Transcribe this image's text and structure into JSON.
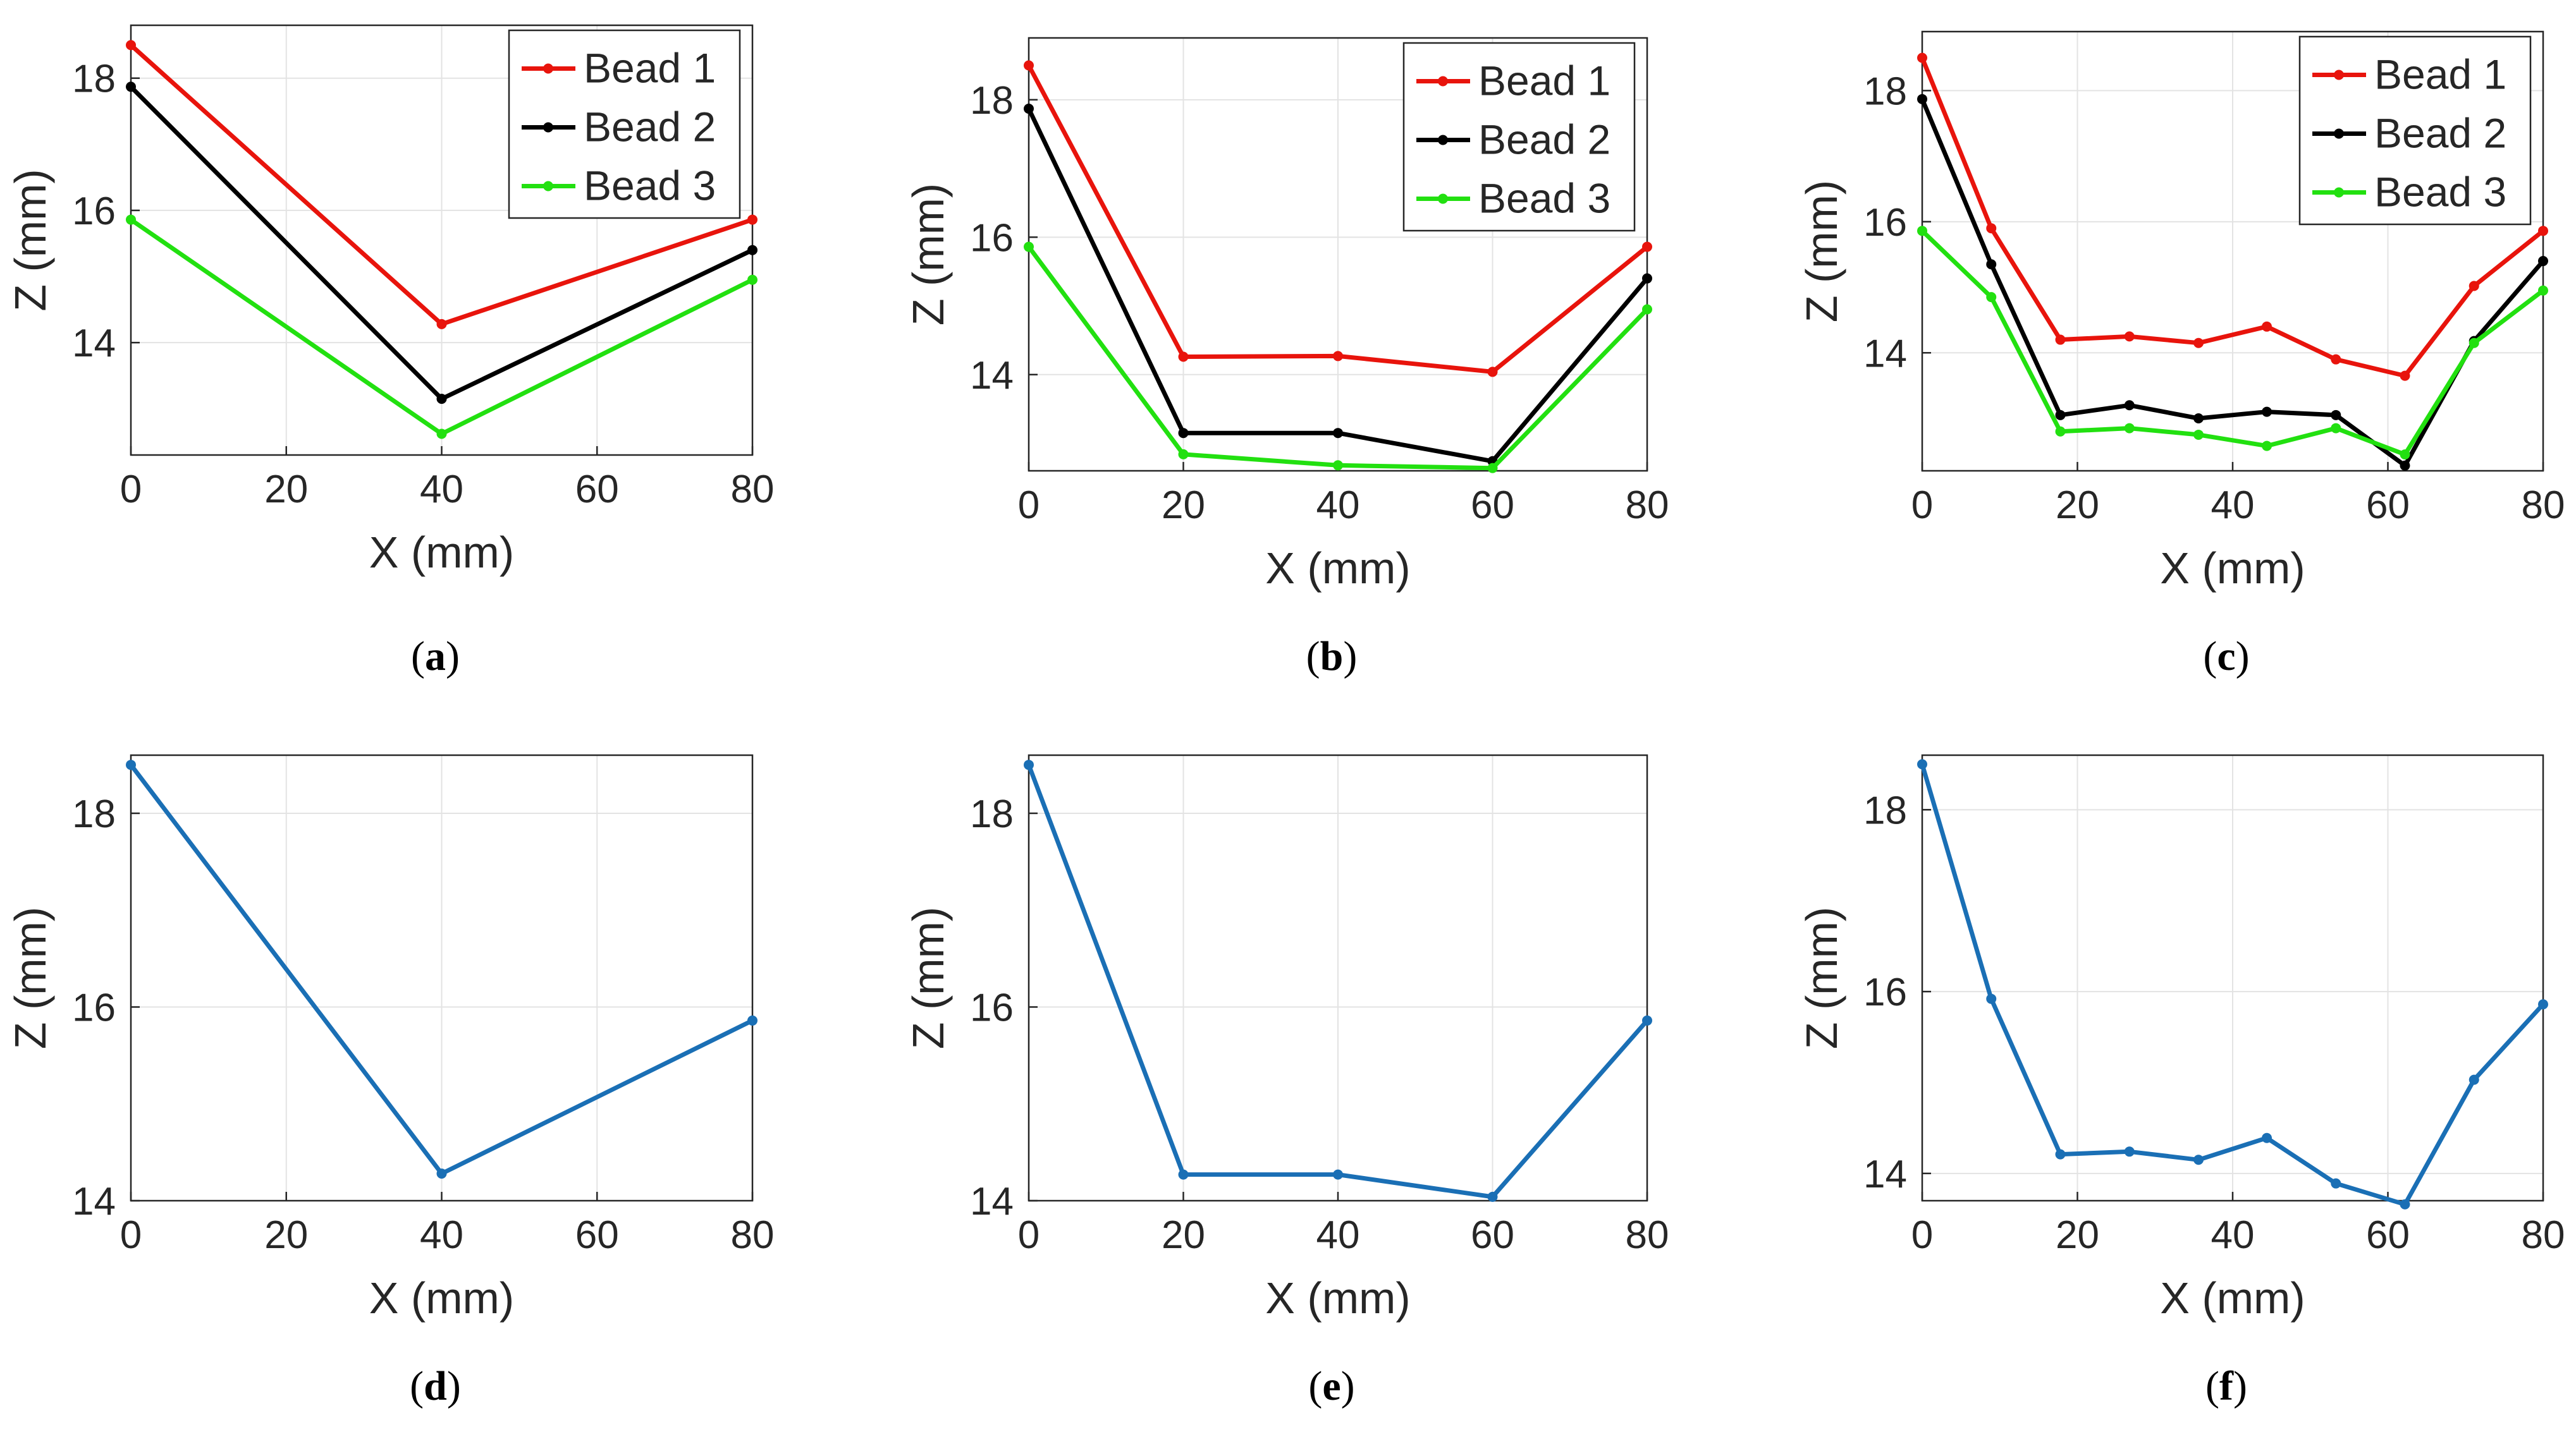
{
  "colors": {
    "bead1": "#e8140c",
    "bead2": "#000000",
    "bead3": "#22e010",
    "single": "#1a6fb5",
    "grid": "#e3e3e3",
    "axis": "#262626"
  },
  "chart_data": [
    {
      "id": "a",
      "type": "line",
      "caption": "a",
      "xlabel": "X (mm)",
      "ylabel": "Z (mm)",
      "xlim": [
        0,
        80
      ],
      "ylim": [
        12.3,
        18.8
      ],
      "xticks": [
        0,
        20,
        40,
        60,
        80
      ],
      "yticks": [
        14,
        16,
        18
      ],
      "legend": "top-right",
      "series": [
        {
          "name": "Bead 1",
          "color_key": "bead1",
          "x": [
            0,
            40,
            80
          ],
          "y": [
            18.5,
            14.28,
            15.86
          ]
        },
        {
          "name": "Bead 2",
          "color_key": "bead2",
          "x": [
            0,
            40,
            80
          ],
          "y": [
            17.87,
            13.15,
            15.4
          ]
        },
        {
          "name": "Bead 3",
          "color_key": "bead3",
          "x": [
            0,
            40,
            80
          ],
          "y": [
            15.86,
            12.62,
            14.95
          ]
        }
      ]
    },
    {
      "id": "b",
      "type": "line",
      "caption": "b",
      "xlabel": "X (mm)",
      "ylabel": "Z (mm)",
      "xlim": [
        0,
        80
      ],
      "ylim": [
        12.6,
        18.9
      ],
      "xticks": [
        0,
        20,
        40,
        60,
        80
      ],
      "yticks": [
        14,
        16,
        18
      ],
      "legend": "top-right",
      "series": [
        {
          "name": "Bead 1",
          "color_key": "bead1",
          "x": [
            0,
            20,
            40,
            60,
            80
          ],
          "y": [
            18.5,
            14.26,
            14.27,
            14.04,
            15.86
          ]
        },
        {
          "name": "Bead 2",
          "color_key": "bead2",
          "x": [
            0,
            20,
            40,
            60,
            80
          ],
          "y": [
            17.87,
            13.15,
            13.15,
            12.74,
            15.4
          ]
        },
        {
          "name": "Bead 3",
          "color_key": "bead3",
          "x": [
            0,
            20,
            40,
            60,
            80
          ],
          "y": [
            15.86,
            12.84,
            12.68,
            12.64,
            14.95
          ]
        }
      ]
    },
    {
      "id": "c",
      "type": "line",
      "caption": "c",
      "xlabel": "X (mm)",
      "ylabel": "Z (mm)",
      "xlim": [
        0,
        80
      ],
      "ylim": [
        12.2,
        18.9
      ],
      "xticks": [
        0,
        20,
        40,
        60,
        80
      ],
      "yticks": [
        14,
        16,
        18
      ],
      "legend": "top-right",
      "series": [
        {
          "name": "Bead 1",
          "color_key": "bead1",
          "x": [
            0,
            8.9,
            17.8,
            26.7,
            35.6,
            44.4,
            53.3,
            62.2,
            71.1,
            80
          ],
          "y": [
            18.5,
            15.9,
            14.2,
            14.25,
            14.15,
            14.4,
            13.9,
            13.65,
            15.02,
            15.86
          ]
        },
        {
          "name": "Bead 2",
          "color_key": "bead2",
          "x": [
            0,
            8.9,
            17.8,
            26.7,
            35.6,
            44.4,
            53.3,
            62.2,
            71.1,
            80
          ],
          "y": [
            17.87,
            15.35,
            13.05,
            13.2,
            13.0,
            13.1,
            13.05,
            12.28,
            14.18,
            15.4
          ]
        },
        {
          "name": "Bead 3",
          "color_key": "bead3",
          "x": [
            0,
            8.9,
            17.8,
            26.7,
            35.6,
            44.4,
            53.3,
            62.2,
            71.1,
            80
          ],
          "y": [
            15.86,
            14.85,
            12.8,
            12.85,
            12.75,
            12.58,
            12.85,
            12.45,
            14.15,
            14.95
          ]
        }
      ]
    },
    {
      "id": "d",
      "type": "line",
      "caption": "d",
      "xlabel": "X (mm)",
      "ylabel": "Z (mm)",
      "xlim": [
        0,
        80
      ],
      "ylim": [
        14,
        18.6
      ],
      "xticks": [
        0,
        20,
        40,
        60,
        80
      ],
      "yticks": [
        14,
        16,
        18
      ],
      "legend": "none",
      "series": [
        {
          "name": "",
          "color_key": "single",
          "x": [
            0,
            40,
            80
          ],
          "y": [
            18.5,
            14.28,
            15.86
          ]
        }
      ]
    },
    {
      "id": "e",
      "type": "line",
      "caption": "e",
      "xlabel": "X (mm)",
      "ylabel": "Z (mm)",
      "xlim": [
        0,
        80
      ],
      "ylim": [
        14,
        18.6
      ],
      "xticks": [
        0,
        20,
        40,
        60,
        80
      ],
      "yticks": [
        14,
        16,
        18
      ],
      "legend": "none",
      "series": [
        {
          "name": "",
          "color_key": "single",
          "x": [
            0,
            20,
            40,
            60,
            80
          ],
          "y": [
            18.5,
            14.27,
            14.27,
            14.04,
            15.86
          ]
        }
      ]
    },
    {
      "id": "f",
      "type": "line",
      "caption": "f",
      "xlabel": "X (mm)",
      "ylabel": "Z (mm)",
      "xlim": [
        0,
        80
      ],
      "ylim": [
        13.7,
        18.6
      ],
      "xticks": [
        0,
        20,
        40,
        60,
        80
      ],
      "yticks": [
        14,
        16,
        18
      ],
      "legend": "none",
      "series": [
        {
          "name": "",
          "color_key": "single",
          "x": [
            0,
            8.9,
            17.8,
            26.7,
            35.6,
            44.4,
            53.3,
            62.2,
            71.1,
            80
          ],
          "y": [
            18.5,
            15.92,
            14.21,
            14.24,
            14.15,
            14.39,
            13.89,
            13.66,
            15.03,
            15.86
          ]
        }
      ]
    }
  ]
}
